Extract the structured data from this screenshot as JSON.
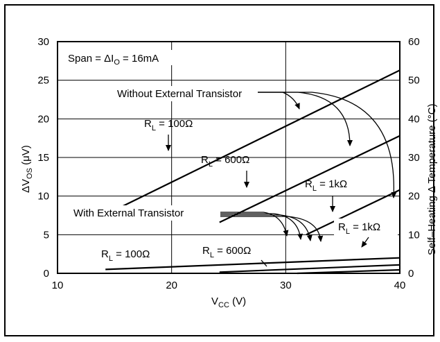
{
  "chart_data": {
    "type": "line",
    "xlabel": "V",
    "xlabel_sub": "CC",
    "xlabel_unit": " (V)",
    "ylabel": "ΔV",
    "ylabel_sub": "OS",
    "ylabel_unit": "  (μV)",
    "y2label": "Self–Heating Δ Temperature (°C)",
    "xlim": [
      10,
      40
    ],
    "ylim": [
      0,
      30
    ],
    "y2lim": [
      0,
      60
    ],
    "xticks": [
      "10",
      "20",
      "30",
      "40"
    ],
    "yticks": [
      "0",
      "5",
      "10",
      "15",
      "20",
      "25",
      "30"
    ],
    "y2ticks": [
      "0",
      "10",
      "20",
      "30",
      "40",
      "50",
      "60"
    ],
    "grid": true,
    "span_note": {
      "prefix": "Span = ΔI",
      "sub": "O",
      "suffix": " = 16mA"
    },
    "group_labels": {
      "without": "Without External Transistor",
      "with": "With External Transistor"
    },
    "series": [
      {
        "group": "without",
        "label_main": "R",
        "label_sub": "L",
        "label_val": " = 100Ω",
        "x": [
          14.2,
          40
        ],
        "y": [
          7.6,
          26.3
        ]
      },
      {
        "group": "without",
        "label_main": "R",
        "label_sub": "L",
        "label_val": " = 600Ω",
        "x": [
          24.2,
          40
        ],
        "y": [
          6.6,
          17.8
        ]
      },
      {
        "group": "without",
        "label_main": "R",
        "label_sub": "L",
        "label_val": " = 1kΩ",
        "x": [
          31.8,
          40
        ],
        "y": [
          5.0,
          10.8
        ]
      },
      {
        "group": "with",
        "label_main": "R",
        "label_sub": "L",
        "label_val": " = 100Ω",
        "x": [
          14.2,
          40
        ],
        "y": [
          0.5,
          2.0
        ]
      },
      {
        "group": "with",
        "label_main": "R",
        "label_sub": "L",
        "label_val": " = 600Ω",
        "x": [
          24.2,
          40
        ],
        "y": [
          0.15,
          1.1
        ]
      },
      {
        "group": "with",
        "label_main": "R",
        "label_sub": "L",
        "label_val": " = 1kΩ",
        "x": [
          31.0,
          40
        ],
        "y": [
          0.0,
          0.45
        ]
      }
    ]
  }
}
